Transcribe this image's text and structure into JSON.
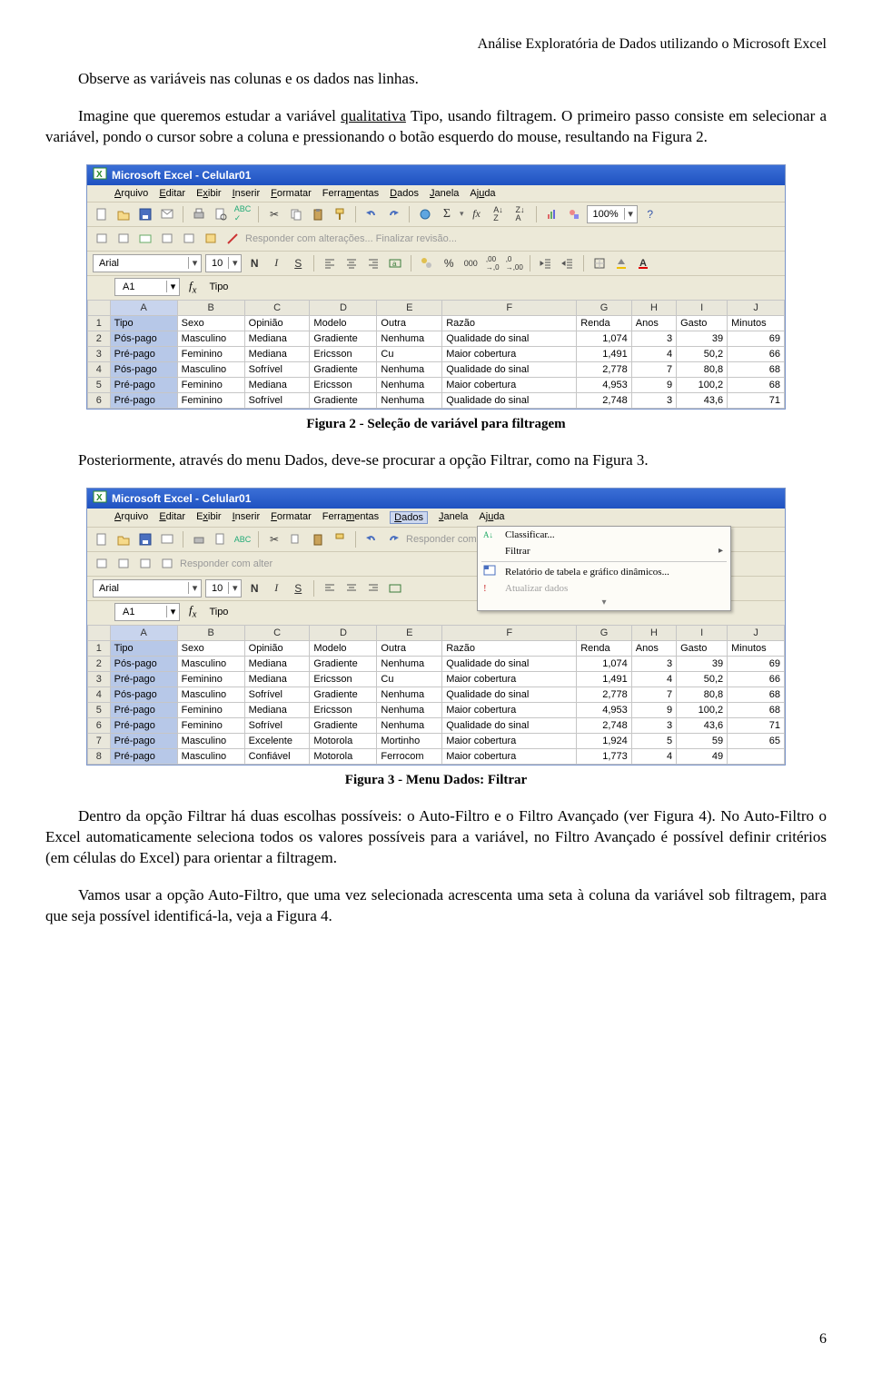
{
  "doc": {
    "header": "Análise Exploratória de Dados utilizando o Microsoft Excel",
    "p1a": "Observe as variáveis nas colunas e os dados nas linhas.",
    "p2a": "Imagine que queremos estudar a variável ",
    "p2b": "qualitativa",
    "p2c": " Tipo, usando filtragem. O primeiro passo consiste em selecionar a variável, pondo o cursor sobre a coluna e pressionando o botão esquerdo do mouse, resultando na Figura 2.",
    "cap2": "Figura 2 - Seleção de variável para filtragem",
    "p3": "Posteriormente, através do menu Dados, deve-se procurar a opção Filtrar, como na Figura 3.",
    "cap3": "Figura 3 - Menu Dados: Filtrar",
    "p4": "Dentro da opção Filtrar há duas escolhas possíveis: o Auto-Filtro e o Filtro Avançado (ver Figura 4). No Auto-Filtro o Excel automaticamente seleciona todos os valores possíveis para a variável, no Filtro Avançado é possível definir critérios (em células do Excel) para orientar a filtragem.",
    "p5": "Vamos usar a opção Auto-Filtro, que uma vez selecionada acrescenta uma seta à coluna da variável sob filtragem, para que seja possível identificá-la, veja a Figura 4.",
    "pageno": "6"
  },
  "excel": {
    "title": "Microsoft Excel - Celular01",
    "menus": [
      "Arquivo",
      "Editar",
      "Exibir",
      "Inserir",
      "Formatar",
      "Ferramentas",
      "Dados",
      "Janela",
      "Ajuda"
    ],
    "zoom": "100%",
    "font": "Arial",
    "fontsize": "10",
    "disabled_tb_text": "Responder com alterações...  Finalizar revisão...",
    "namebox": "A1",
    "fxval": "Tipo",
    "fmtlabels": {
      "bold": "N",
      "italic": "I",
      "underline": "S"
    },
    "dropdown": {
      "classificar": "Classificar...",
      "filtrar": "Filtrar",
      "relatorio": "Relatório de tabela e gráfico dinâmicos...",
      "atualizar": "Atualizar dados"
    },
    "colheads": [
      "A",
      "B",
      "C",
      "D",
      "E",
      "F",
      "G",
      "H",
      "I",
      "J"
    ],
    "headers": [
      "Tipo",
      "Sexo",
      "Opinião",
      "Modelo",
      "Outra",
      "Razão",
      "Renda",
      "Anos",
      "Gasto",
      "Minutos"
    ],
    "rows2": [
      [
        "Pós-pago",
        "Masculino",
        "Mediana",
        "Gradiente",
        "Nenhuma",
        "Qualidade do sinal",
        "1,074",
        "3",
        "39",
        "69"
      ],
      [
        "Pré-pago",
        "Feminino",
        "Mediana",
        "Ericsson",
        "Cu",
        "Maior cobertura",
        "1,491",
        "4",
        "50,2",
        "66"
      ],
      [
        "Pós-pago",
        "Masculino",
        "Sofrível",
        "Gradiente",
        "Nenhuma",
        "Qualidade do sinal",
        "2,778",
        "7",
        "80,8",
        "68"
      ],
      [
        "Pré-pago",
        "Feminino",
        "Mediana",
        "Ericsson",
        "Nenhuma",
        "Maior cobertura",
        "4,953",
        "9",
        "100,2",
        "68"
      ],
      [
        "Pré-pago",
        "Feminino",
        "Sofrível",
        "Gradiente",
        "Nenhuma",
        "Qualidade do sinal",
        "2,748",
        "3",
        "43,6",
        "71"
      ]
    ],
    "rows3": [
      [
        "Pós-pago",
        "Masculino",
        "Mediana",
        "Gradiente",
        "Nenhuma",
        "Qualidade do sinal",
        "1,074",
        "3",
        "39",
        "69"
      ],
      [
        "Pré-pago",
        "Feminino",
        "Mediana",
        "Ericsson",
        "Cu",
        "Maior cobertura",
        "1,491",
        "4",
        "50,2",
        "66"
      ],
      [
        "Pós-pago",
        "Masculino",
        "Sofrível",
        "Gradiente",
        "Nenhuma",
        "Qualidade do sinal",
        "2,778",
        "7",
        "80,8",
        "68"
      ],
      [
        "Pré-pago",
        "Feminino",
        "Mediana",
        "Ericsson",
        "Nenhuma",
        "Maior cobertura",
        "4,953",
        "9",
        "100,2",
        "68"
      ],
      [
        "Pré-pago",
        "Feminino",
        "Sofrível",
        "Gradiente",
        "Nenhuma",
        "Qualidade do sinal",
        "2,748",
        "3",
        "43,6",
        "71"
      ],
      [
        "Pré-pago",
        "Masculino",
        "Excelente",
        "Motorola",
        "Mortinho",
        "Maior cobertura",
        "1,924",
        "5",
        "59",
        "65"
      ],
      [
        "Pré-pago",
        "Masculino",
        "Confiável",
        "Motorola",
        "Ferrocom",
        "Maior cobertura",
        "1,773",
        "4",
        "49",
        ""
      ]
    ]
  }
}
